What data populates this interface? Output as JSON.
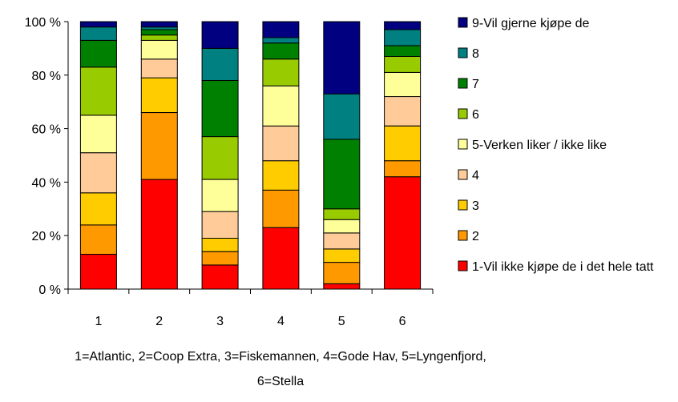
{
  "chart_data": {
    "type": "bar",
    "stacked": true,
    "percent_stacked": true,
    "categories": [
      "1",
      "2",
      "3",
      "4",
      "5",
      "6"
    ],
    "y_ticks": [
      "0 %",
      "20 %",
      "40 %",
      "60 %",
      "80 %",
      "100 %"
    ],
    "ylim": [
      0,
      100
    ],
    "grid": false,
    "legend_position": "right",
    "series": [
      {
        "name": "1-Vil ikke kjøpe de i det hele tatt",
        "color": "#ff0000",
        "values": [
          13,
          41,
          9,
          23,
          2,
          42
        ]
      },
      {
        "name": "2",
        "color": "#ff9900",
        "values": [
          11,
          25,
          5,
          14,
          8,
          6
        ]
      },
      {
        "name": "3",
        "color": "#ffcc00",
        "values": [
          12,
          13,
          5,
          11,
          5,
          13
        ]
      },
      {
        "name": "4",
        "color": "#ffcc99",
        "values": [
          15,
          7,
          10,
          13,
          6,
          11
        ]
      },
      {
        "name": "5-Verken liker / ikke like",
        "color": "#ffff99",
        "values": [
          14,
          7,
          12,
          15,
          5,
          9
        ]
      },
      {
        "name": "6",
        "color": "#99cc00",
        "values": [
          18,
          2,
          16,
          10,
          4,
          6
        ]
      },
      {
        "name": "7",
        "color": "#008000",
        "values": [
          10,
          2,
          21,
          6,
          26,
          4
        ]
      },
      {
        "name": "8",
        "color": "#008080",
        "values": [
          5,
          1,
          12,
          2,
          17,
          6
        ]
      },
      {
        "name": "9-Vil gjerne kjøpe de",
        "color": "#000080",
        "values": [
          2,
          2,
          10,
          6,
          27,
          3
        ]
      }
    ],
    "caption_line1": "1=Atlantic, 2=Coop Extra, 3=Fiskemannen, 4=Gode Hav, 5=Lyngenfjord,",
    "caption_line2": "6=Stella"
  }
}
